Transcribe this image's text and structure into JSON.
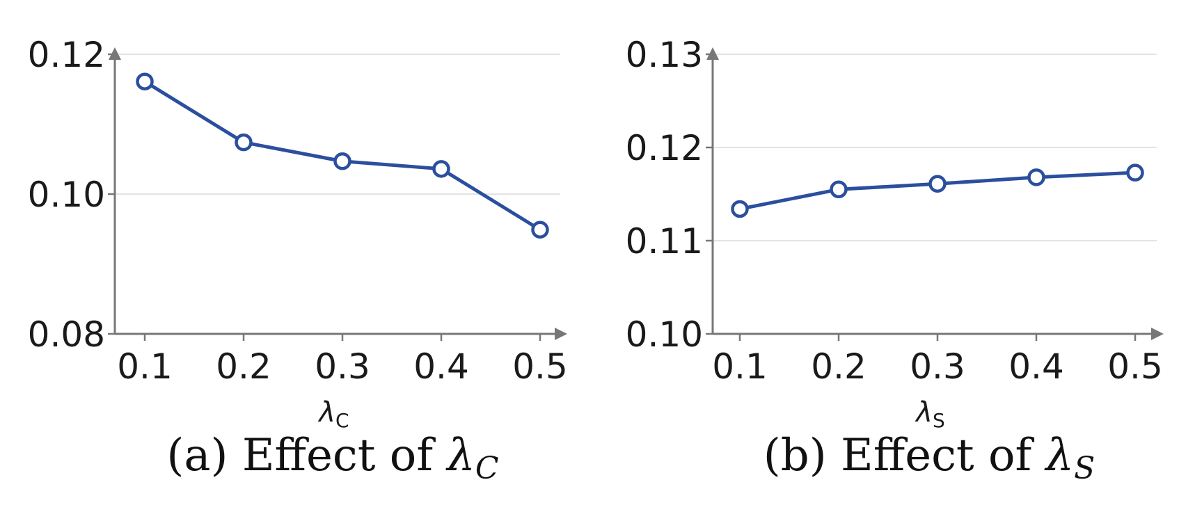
{
  "chart_data": [
    {
      "type": "line",
      "caption": "(a) Effect of ",
      "caption_symbol": "λ",
      "caption_subscript": "C",
      "xlabel_symbol": "λ",
      "xlabel_subscript": "C",
      "x": [
        0.1,
        0.2,
        0.3,
        0.4,
        0.5
      ],
      "x_tick_labels": [
        "0.1",
        "0.2",
        "0.3",
        "0.4",
        "0.5"
      ],
      "y_ticks": [
        0.08,
        0.1,
        0.12
      ],
      "y_tick_labels": [
        "0.08",
        "0.10",
        "0.12"
      ],
      "ylim": [
        0.08,
        0.12
      ],
      "series": [
        {
          "values": [
            0.1161,
            0.1074,
            0.1047,
            0.1036,
            0.0949
          ]
        }
      ],
      "grid": "horizontal",
      "color": "#2b4f9e"
    },
    {
      "type": "line",
      "caption": "(b) Effect of ",
      "caption_symbol": "λ",
      "caption_subscript": "S",
      "xlabel_symbol": "λ",
      "xlabel_subscript": "S",
      "x": [
        0.1,
        0.2,
        0.3,
        0.4,
        0.5
      ],
      "x_tick_labels": [
        "0.1",
        "0.2",
        "0.3",
        "0.4",
        "0.5"
      ],
      "y_ticks": [
        0.1,
        0.11,
        0.12,
        0.13
      ],
      "y_tick_labels": [
        "0.10",
        "0.11",
        "0.12",
        "0.13"
      ],
      "ylim": [
        0.1,
        0.13
      ],
      "series": [
        {
          "values": [
            0.1134,
            0.1155,
            0.1161,
            0.1168,
            0.1173
          ]
        }
      ],
      "grid": "horizontal",
      "color": "#2b4f9e"
    }
  ]
}
